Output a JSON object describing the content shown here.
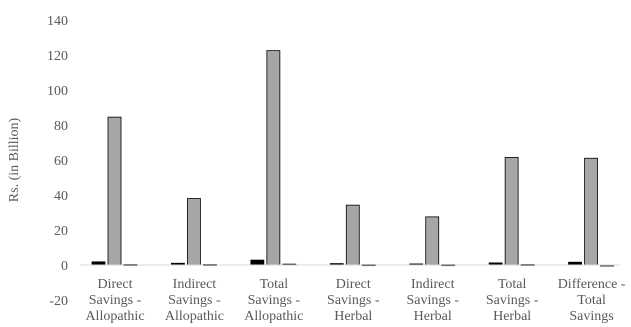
{
  "chart_data": {
    "type": "bar",
    "title": "",
    "xlabel": "",
    "ylabel": "Rs. (in Billion)",
    "ylim": [
      -20,
      140
    ],
    "yticks": [
      -20,
      0,
      20,
      40,
      60,
      80,
      100,
      120,
      140
    ],
    "grid": false,
    "categories": [
      [
        "Direct",
        "Savings -",
        "Allopathic"
      ],
      [
        "Indirect",
        "Savings -",
        "Allopathic"
      ],
      [
        "Total",
        "Savings -",
        "Allopathic"
      ],
      [
        "Direct",
        "Savings -",
        "Herbal"
      ],
      [
        "Indirect",
        "Savings -",
        "Herbal"
      ],
      [
        "Total",
        "Savings -",
        "Herbal"
      ],
      [
        "Difference -",
        "Total",
        "Savings"
      ]
    ],
    "series": [
      {
        "color": "#000000",
        "values": [
          1.8,
          1.0,
          2.8,
          0.8,
          0.6,
          1.2,
          1.6
        ]
      },
      {
        "color": "#a6a6a6",
        "values": [
          84.5,
          38.0,
          122.5,
          34.2,
          27.5,
          61.5,
          61.0
        ]
      },
      {
        "color": "#d9d9d9",
        "values": [
          0.3,
          0.3,
          0.5,
          0.2,
          0.2,
          0.3,
          -0.3
        ]
      }
    ]
  }
}
